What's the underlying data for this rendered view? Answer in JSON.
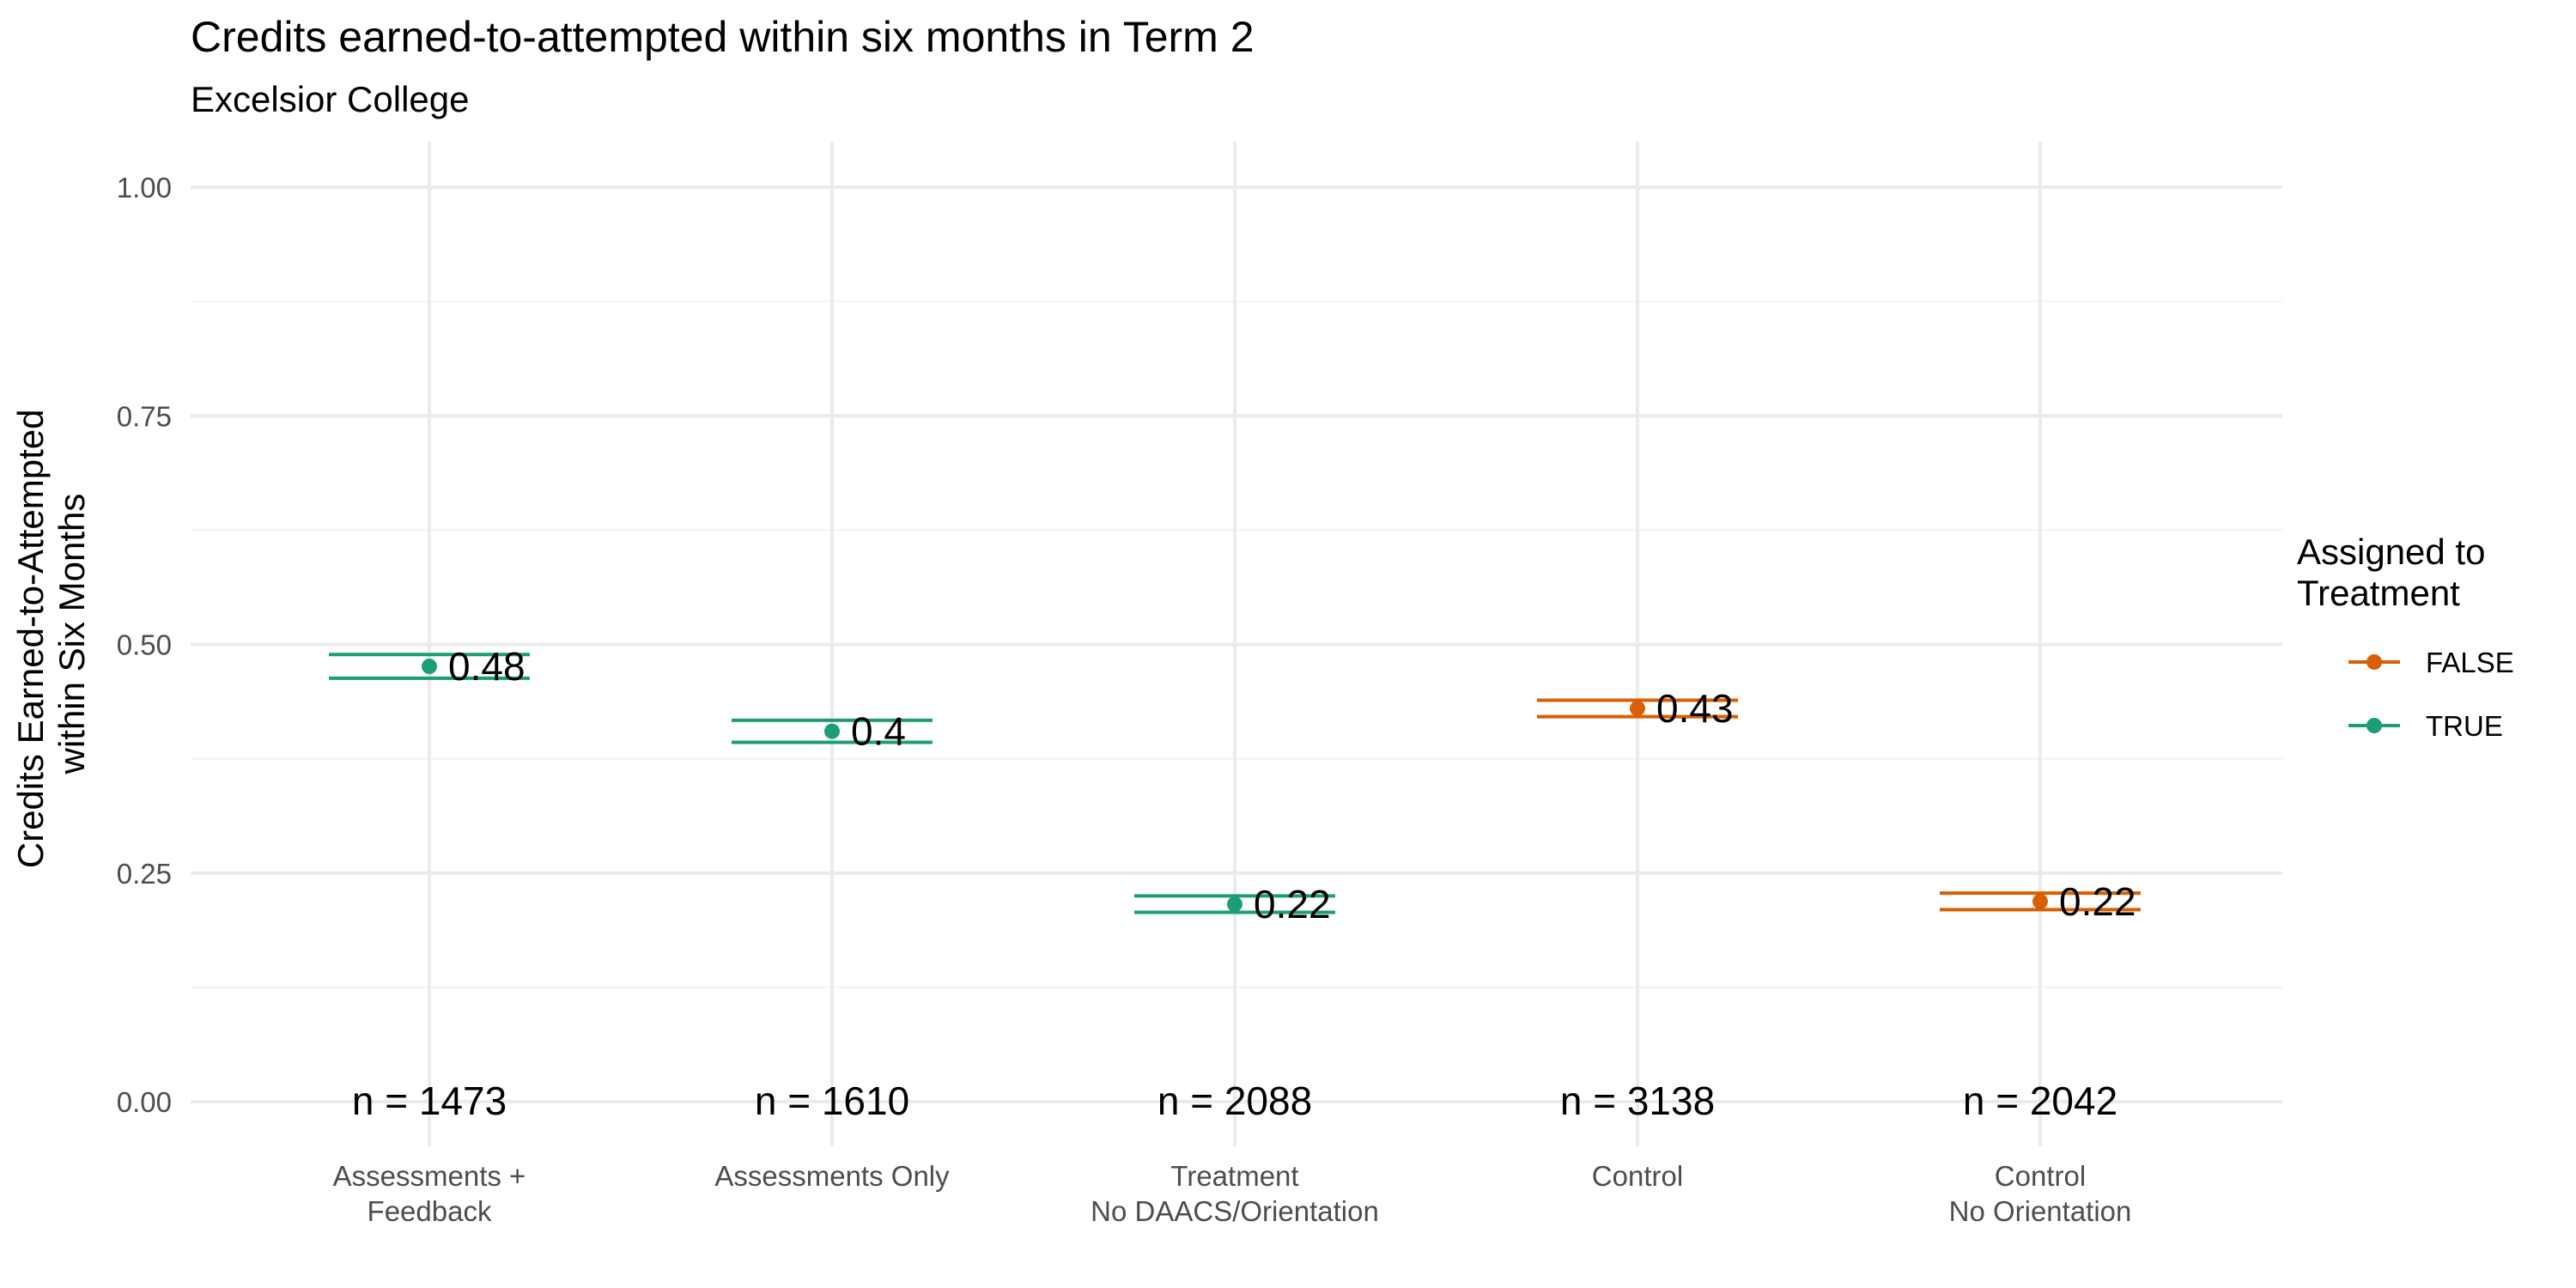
{
  "chart_data": {
    "type": "scatter",
    "title": "Credits earned-to-attempted within six months in Term 2",
    "subtitle": "Excelsior College",
    "xlabel": "",
    "ylabel": [
      "Credits Earned-to-Attempted",
      "within Six Months"
    ],
    "ylim": [
      0,
      1
    ],
    "yticks": [
      "0.00",
      "0.25",
      "0.50",
      "0.75",
      "1.00"
    ],
    "grid": true,
    "categories": [
      [
        "Assessments +",
        "Feedback"
      ],
      [
        "Assessments Only"
      ],
      [
        "Treatment",
        "No DAACS/Orientation"
      ],
      [
        "Control"
      ],
      [
        "Control",
        "No Orientation"
      ]
    ],
    "points": [
      {
        "mean": 0.476,
        "upper": 0.489,
        "lower": 0.463,
        "label": "0.48",
        "n": "n = 1473",
        "group": "TRUE"
      },
      {
        "mean": 0.405,
        "upper": 0.417,
        "lower": 0.393,
        "label": "0.4",
        "n": "n = 1610",
        "group": "TRUE"
      },
      {
        "mean": 0.216,
        "upper": 0.225,
        "lower": 0.207,
        "label": "0.22",
        "n": "n = 2088",
        "group": "TRUE"
      },
      {
        "mean": 0.43,
        "upper": 0.439,
        "lower": 0.421,
        "label": "0.43",
        "n": "n = 3138",
        "group": "FALSE"
      },
      {
        "mean": 0.219,
        "upper": 0.228,
        "lower": 0.21,
        "label": "0.22",
        "n": "n = 2042",
        "group": "FALSE"
      }
    ],
    "legend": {
      "title": [
        "Assigned to",
        "Treatment"
      ],
      "placement": "right",
      "entries": [
        {
          "label": "FALSE",
          "color": "#d95f02"
        },
        {
          "label": "TRUE",
          "color": "#1b9e77"
        }
      ]
    }
  }
}
